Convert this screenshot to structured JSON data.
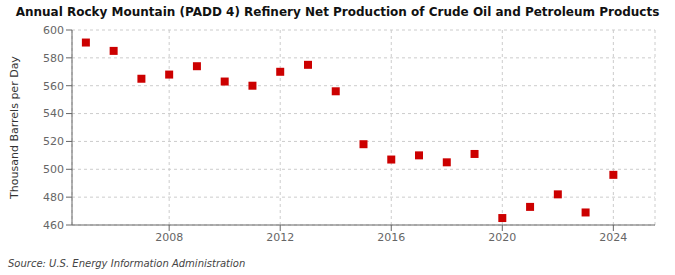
{
  "chart_data": {
    "type": "scatter",
    "title": "Annual Rocky Mountain (PADD 4) Refinery Net Production of Crude Oil and Petroleum Products",
    "ylabel": "Thousand Barrels per Day",
    "annotations": [
      "Source: U.S. Energy Information Administration"
    ],
    "x": [
      2005,
      2006,
      2007,
      2008,
      2009,
      2010,
      2011,
      2012,
      2013,
      2014,
      2015,
      2016,
      2017,
      2018,
      2019,
      2020,
      2021,
      2022,
      2023,
      2024
    ],
    "values": [
      591,
      585,
      565,
      568,
      574,
      563,
      560,
      570,
      575,
      556,
      518,
      507,
      510,
      505,
      511,
      465,
      473,
      482,
      469,
      496
    ],
    "color": "#cc0000",
    "marker": "square",
    "xlim": [
      2004.5,
      2025.5
    ],
    "xticks": [
      2008,
      2012,
      2016,
      2020,
      2024
    ],
    "ylim": [
      460,
      600
    ],
    "yticks": [
      460,
      480,
      500,
      520,
      540,
      560,
      580,
      600
    ],
    "grid": true
  }
}
